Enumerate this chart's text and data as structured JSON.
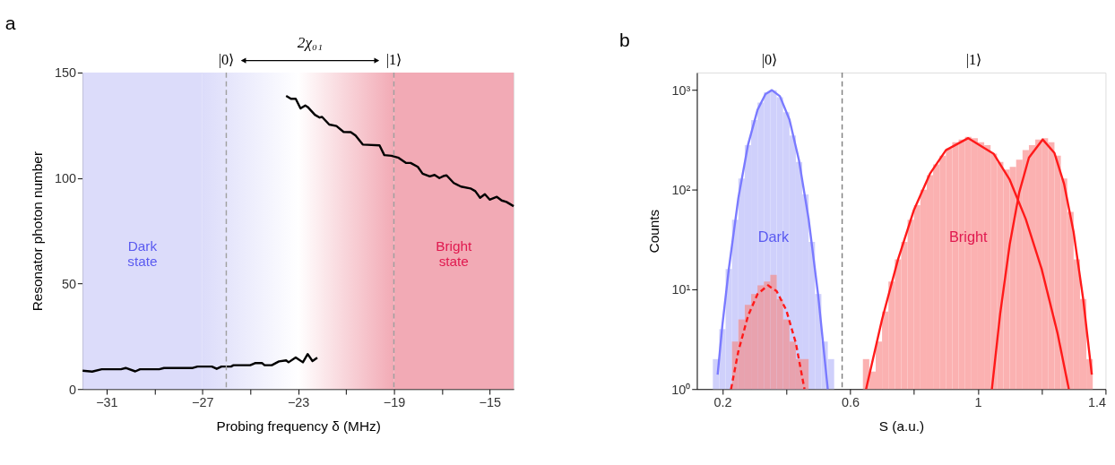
{
  "chart_data": [
    {
      "type": "line",
      "title": "a",
      "xlabel": "Probing frequency δ (MHz)",
      "ylabel": "Resonator photon number",
      "xlim": [
        -32,
        -14
      ],
      "xticks": [
        -31,
        {
          "value": -29,
          "label": null
        },
        -27,
        {
          "value": -25,
          "label": null
        },
        -23,
        {
          "value": -21,
          "label": null
        },
        -19,
        {
          "value": -17,
          "label": null
        },
        -15
      ],
      "ylim": [
        0,
        150
      ],
      "yticks": [
        0,
        50,
        100,
        150
      ],
      "line_style": "solid",
      "bands": [
        {
          "axis": "x",
          "from": -32,
          "to": -27,
          "label": "Dark state",
          "color": "#dcdcfa"
        },
        {
          "axis": "x",
          "from": -27,
          "to": -19,
          "color": "#ffffff"
        },
        {
          "axis": "x",
          "from": -19,
          "to": -14,
          "label": "Bright state",
          "color": "#f2aab5"
        }
      ],
      "ref_lines": [
        {
          "axis": "x",
          "value": -26,
          "label": "|0⟩",
          "color": "#a0a0a0",
          "line_style": "dashed"
        },
        {
          "axis": "x",
          "value": -19,
          "label": "|1⟩",
          "color": "#a0a0a0",
          "line_style": "dashed"
        }
      ],
      "annotations": [
        "2χ₀₁"
      ],
      "series": [
        {
          "color": "#000000",
          "x": [
            -32,
            -31.6,
            -31.2,
            -30.4,
            -30.2,
            -29.8,
            -29.6,
            -28.8,
            -28.6,
            -27.4,
            -27.2,
            -26.6,
            -26.4,
            -26.2,
            -25.8,
            -25.7,
            -25.0,
            -24.8,
            -24.5,
            -24.4,
            -24.1,
            -23.8,
            -23.5,
            -23.4,
            -23.1,
            -22.8,
            -22.6,
            -22.4,
            -22.2
          ],
          "values": [
            8.7,
            8.3,
            9.4,
            9.4,
            10,
            8.4,
            9.4,
            9.4,
            10,
            10,
            10.7,
            10.7,
            9.6,
            10.7,
            10.7,
            11.3,
            11.3,
            12.3,
            12.3,
            11.3,
            11.3,
            13.1,
            13.6,
            12.7,
            15,
            12.7,
            16.6,
            13.3,
            14.9
          ]
        },
        {
          "color": "#000000",
          "x": [
            -23.5,
            -23.3,
            -23.1,
            -22.9,
            -22.7,
            -22.6,
            -22.3,
            -22.1,
            -22.0,
            -21.7,
            -21.4,
            -21.1,
            -20.8,
            -20.6,
            -20.3,
            -20.1,
            -19.6,
            -19.4,
            -19.1,
            -18.8,
            -18.5,
            -18.3,
            -18.0,
            -17.8,
            -17.5,
            -17.3,
            -17.1,
            -16.9,
            -16.8,
            -16.5,
            -16.2,
            -15.8,
            -15.6,
            -15.4,
            -15.2,
            -15.0,
            -14.7,
            -14.5,
            -14.3,
            -14.0
          ],
          "values": [
            139,
            137.6,
            137.6,
            133,
            134.4,
            133.7,
            130,
            128.7,
            129,
            125.4,
            124.7,
            121.9,
            121.8,
            120.2,
            115.9,
            115.8,
            115.5,
            110.9,
            110.6,
            109.6,
            107.2,
            107.2,
            105.3,
            102.1,
            100.8,
            101.5,
            100,
            101.1,
            101.3,
            97.7,
            96,
            95.1,
            93.8,
            90.7,
            92.4,
            89.8,
            91.1,
            89.4,
            88.7,
            86.7
          ]
        }
      ]
    },
    {
      "type": "histogram",
      "title": "b",
      "xlabel": "S (a.u.)",
      "ylabel": "Counts",
      "log": true,
      "xlim": [
        0.12,
        1.4
      ],
      "xticks": [
        0.2,
        {
          "value": 0.4,
          "label": null
        },
        0.6,
        {
          "value": 0.8,
          "label": null
        },
        1,
        {
          "value": 1.2,
          "label": null
        },
        1.4
      ],
      "ylim": [
        1,
        1500
      ],
      "yticks": [
        {
          "value": 1,
          "label": "10⁰"
        },
        {
          "value": 10,
          "label": "10¹"
        },
        {
          "value": 100,
          "label": "10²"
        },
        {
          "value": 1000,
          "label": "10³"
        }
      ],
      "ref_lines": [
        {
          "axis": "x",
          "value": 0.575,
          "color": "#808080",
          "line_style": "dashed"
        }
      ],
      "annotations": [
        "|0⟩",
        "|1⟩"
      ],
      "series": [
        {
          "name": "Dark",
          "type": "histogram",
          "color": "#cfd0fb",
          "bins": [
            0.17,
            0.19,
            0.21,
            0.23,
            0.25,
            0.27,
            0.29,
            0.31,
            0.33,
            0.35,
            0.37,
            0.39,
            0.41,
            0.43,
            0.45,
            0.47,
            0.49,
            0.51,
            0.53,
            0.55
          ],
          "values": [
            2,
            4,
            16,
            50,
            130,
            280,
            500,
            750,
            950,
            1000,
            850,
            600,
            350,
            190,
            90,
            30,
            9,
            3,
            2
          ]
        },
        {
          "type": "histogram",
          "color": "#e8a2ae",
          "bins": [
            0.23,
            0.25,
            0.27,
            0.29,
            0.31,
            0.33,
            0.35,
            0.37,
            0.39,
            0.41,
            0.43,
            0.45,
            0.47
          ],
          "values": [
            3,
            5,
            7,
            9,
            11,
            12,
            14,
            8,
            5,
            3,
            2,
            2
          ]
        },
        {
          "name": "Bright",
          "type": "histogram",
          "color": "#fbb1b1",
          "bins": [
            0.64,
            0.66,
            0.68,
            0.7,
            0.72,
            0.74,
            0.76,
            0.78,
            0.8,
            0.82,
            0.84,
            0.86,
            0.88,
            0.9,
            0.92,
            0.94,
            0.96,
            0.98,
            1.0,
            1.02,
            1.04,
            1.06,
            1.08,
            1.1,
            1.12,
            1.14,
            1.16,
            1.18,
            1.2,
            1.22,
            1.24,
            1.26,
            1.28,
            1.3,
            1.32,
            1.34,
            1.36
          ],
          "values": [
            2,
            1.5,
            3,
            6,
            12,
            20,
            30,
            50,
            70,
            100,
            140,
            180,
            220,
            260,
            300,
            320,
            340,
            330,
            300,
            280,
            230,
            190,
            160,
            170,
            200,
            250,
            280,
            320,
            330,
            300,
            220,
            130,
            60,
            20,
            8,
            2
          ]
        },
        {
          "type": "line",
          "color": "#7a7aff",
          "line_style": "solid",
          "x": [
            0.185,
            0.2,
            0.22,
            0.25,
            0.28,
            0.31,
            0.335,
            0.355,
            0.38,
            0.41,
            0.44,
            0.47,
            0.5,
            0.53
          ],
          "values": [
            1.4,
            4.4,
            16,
            83,
            281,
            634,
            914,
            1000,
            869,
            506,
            196,
            51,
            8.7,
            1.0
          ]
        },
        {
          "type": "line",
          "color": "#ff1a1a",
          "line_style": "dashed",
          "x": [
            0.227,
            0.25,
            0.28,
            0.31,
            0.343,
            0.37,
            0.4,
            0.43,
            0.457
          ],
          "values": [
            1,
            2.4,
            5.4,
            9.0,
            11,
            9.6,
            6.2,
            2.9,
            1.0
          ]
        },
        {
          "type": "line",
          "color": "#ff1a1a",
          "line_style": "solid",
          "x": [
            0.65,
            0.7,
            0.75,
            0.8,
            0.85,
            0.9,
            0.97,
            1.05,
            1.1,
            1.15,
            1.2,
            1.25,
            1.285
          ],
          "values": [
            1,
            5,
            20,
            63,
            145,
            250,
            330,
            229,
            126,
            51,
            16,
            3.6,
            1
          ]
        },
        {
          "type": "line",
          "color": "#ff1a1a",
          "line_style": "solid",
          "x": [
            1.044,
            1.07,
            1.1,
            1.13,
            1.16,
            1.203,
            1.24,
            1.27,
            1.3,
            1.33,
            1.357
          ],
          "values": [
            1,
            5.7,
            28.5,
            95,
            210,
            320,
            234,
            115,
            37.6,
            8.0,
            1.4
          ]
        }
      ]
    }
  ]
}
